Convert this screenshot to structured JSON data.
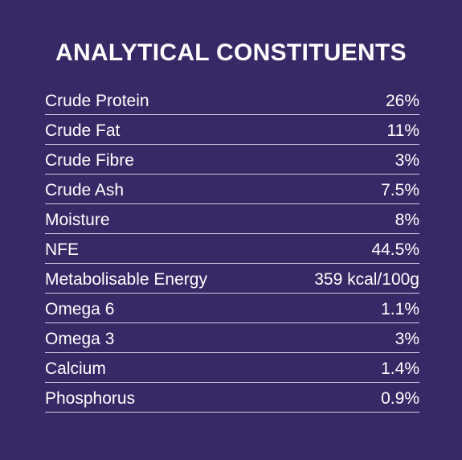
{
  "panel": {
    "title": "ANALYTICAL CONSTITUENTS",
    "background_color": "#372966",
    "rows": [
      {
        "label": "Crude Protein",
        "value": "26%"
      },
      {
        "label": "Crude Fat",
        "value": "11%"
      },
      {
        "label": "Crude Fibre",
        "value": "3%"
      },
      {
        "label": "Crude Ash",
        "value": "7.5%"
      },
      {
        "label": "Moisture",
        "value": "8%"
      },
      {
        "label": "NFE",
        "value": "44.5%"
      },
      {
        "label": "Metabolisable Energy",
        "value": "359 kcal/100g"
      },
      {
        "label": "Omega 6",
        "value": "1.1%"
      },
      {
        "label": "Omega 3",
        "value": "3%"
      },
      {
        "label": "Calcium",
        "value": "1.4%"
      },
      {
        "label": "Phosphorus",
        "value": "0.9%"
      }
    ]
  }
}
